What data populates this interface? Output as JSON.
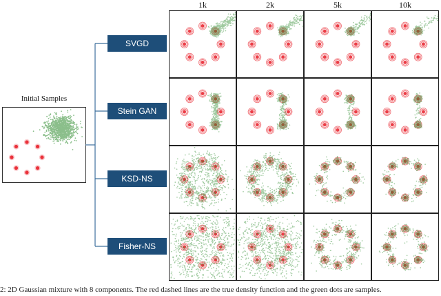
{
  "column_headers": [
    "1k",
    "2k",
    "5k",
    "10k"
  ],
  "initial": {
    "title": "Initial Samples"
  },
  "methods": [
    {
      "label": "SVGD",
      "pattern": "svgd"
    },
    {
      "label": "Stein GAN",
      "pattern": "steingan"
    },
    {
      "label": "KSD-NS",
      "pattern": "ksdns"
    },
    {
      "label": "Fisher-NS",
      "pattern": "fisherns"
    }
  ],
  "caption": "2: 2D Gaussian mixture with 8 components. The red dashed lines are the true density function and the green dots are samples.",
  "colors": {
    "target": "#e8202a",
    "sample": "#2e8b2e",
    "label_bg": "#1e4e79",
    "connector": "#3c6f9c"
  }
}
